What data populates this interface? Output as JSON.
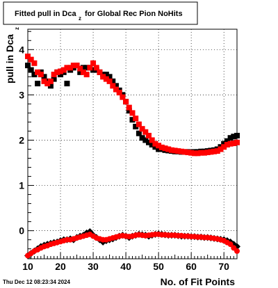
{
  "chart_data": {
    "type": "scatter",
    "title": {
      "main": "Fitted pull in Dca",
      "subscript": "z",
      "rest": "for Global Rec Pion NoHits"
    },
    "xlabel": "No. of Fit Points",
    "ylabel": {
      "main": "pull in Dca",
      "subscript": "z"
    },
    "xlim": [
      10,
      74
    ],
    "ylim": [
      -0.62,
      4.45
    ],
    "xticks": [
      10,
      20,
      30,
      40,
      50,
      60,
      70
    ],
    "yticks": [
      0,
      1,
      2,
      3,
      4
    ],
    "grid": true,
    "date_stamp": "Thu Dec 12 08:23:34 2024",
    "colors": {
      "black_series": "#000000",
      "red_series": "#ff0000"
    },
    "series": [
      {
        "marker": "square",
        "color": "#000000",
        "x": [
          10,
          11,
          12,
          13,
          14,
          15,
          16,
          17,
          18,
          19,
          20,
          21,
          22,
          23,
          24,
          25,
          26,
          27,
          28,
          29,
          30,
          31,
          32,
          33,
          34,
          35,
          36,
          37,
          38,
          39,
          40,
          41,
          42,
          43,
          44,
          45,
          46,
          47,
          48,
          49,
          50,
          51,
          52,
          53,
          54,
          55,
          56,
          57,
          58,
          59,
          60,
          61,
          62,
          63,
          64,
          65,
          66,
          67,
          68,
          69,
          70,
          71,
          72,
          73,
          74
        ],
        "y": [
          3.65,
          3.55,
          3.45,
          3.25,
          3.5,
          3.4,
          3.3,
          3.2,
          3.35,
          3.5,
          3.45,
          3.5,
          3.25,
          3.55,
          3.6,
          3.65,
          3.5,
          3.6,
          3.6,
          3.6,
          3.55,
          3.55,
          3.5,
          3.45,
          3.45,
          3.4,
          3.3,
          3.2,
          3.1,
          3.0,
          2.85,
          2.65,
          2.45,
          2.3,
          2.15,
          2.05,
          2.0,
          1.95,
          1.9,
          1.85,
          1.8,
          1.8,
          1.78,
          1.77,
          1.76,
          1.75,
          1.75,
          1.74,
          1.74,
          1.74,
          1.73,
          1.74,
          1.74,
          1.75,
          1.75,
          1.76,
          1.77,
          1.78,
          1.8,
          1.85,
          1.92,
          1.98,
          2.05,
          2.08,
          2.1
        ]
      },
      {
        "marker": "diamond",
        "color": "#000000",
        "x": [
          10,
          11,
          12,
          13,
          14,
          15,
          16,
          17,
          18,
          19,
          20,
          21,
          22,
          23,
          24,
          25,
          26,
          27,
          28,
          29,
          30,
          31,
          32,
          33,
          34,
          35,
          36,
          37,
          38,
          39,
          40,
          41,
          42,
          43,
          44,
          45,
          46,
          47,
          48,
          49,
          50,
          51,
          52,
          53,
          54,
          55,
          56,
          57,
          58,
          59,
          60,
          61,
          62,
          63,
          64,
          65,
          66,
          67,
          68,
          69,
          70,
          71,
          72,
          73,
          74
        ],
        "y": [
          -0.55,
          -0.5,
          -0.45,
          -0.4,
          -0.35,
          -0.32,
          -0.3,
          -0.28,
          -0.26,
          -0.25,
          -0.22,
          -0.2,
          -0.2,
          -0.18,
          -0.2,
          -0.15,
          -0.12,
          -0.1,
          -0.05,
          -0.02,
          -0.1,
          -0.15,
          -0.2,
          -0.25,
          -0.22,
          -0.2,
          -0.18,
          -0.15,
          -0.12,
          -0.1,
          -0.12,
          -0.15,
          -0.12,
          -0.1,
          -0.08,
          -0.09,
          -0.1,
          -0.12,
          -0.1,
          -0.08,
          -0.07,
          -0.08,
          -0.09,
          -0.1,
          -0.1,
          -0.1,
          -0.11,
          -0.12,
          -0.12,
          -0.12,
          -0.13,
          -0.13,
          -0.14,
          -0.14,
          -0.15,
          -0.15,
          -0.16,
          -0.17,
          -0.18,
          -0.19,
          -0.2,
          -0.22,
          -0.25,
          -0.3,
          -0.35
        ]
      },
      {
        "marker": "square",
        "color": "#ff0000",
        "x": [
          10,
          11,
          12,
          13,
          14,
          15,
          16,
          17,
          18,
          19,
          20,
          21,
          22,
          23,
          24,
          25,
          26,
          27,
          28,
          29,
          30,
          31,
          32,
          33,
          34,
          35,
          36,
          37,
          38,
          39,
          40,
          41,
          42,
          43,
          44,
          45,
          46,
          47,
          48,
          49,
          50,
          51,
          52,
          53,
          54,
          55,
          56,
          57,
          58,
          59,
          60,
          61,
          62,
          63,
          64,
          65,
          66,
          67,
          68,
          69,
          70,
          71,
          72,
          73,
          74
        ],
        "y": [
          3.85,
          3.78,
          3.7,
          3.5,
          3.45,
          3.3,
          3.25,
          3.3,
          3.45,
          3.5,
          3.52,
          3.55,
          3.6,
          3.6,
          3.65,
          3.65,
          3.58,
          3.5,
          3.45,
          3.6,
          3.7,
          3.6,
          3.5,
          3.4,
          3.35,
          3.3,
          3.2,
          3.12,
          3.05,
          2.95,
          2.85,
          2.72,
          2.6,
          2.48,
          2.35,
          2.25,
          2.18,
          2.1,
          2.0,
          1.92,
          1.88,
          1.84,
          1.82,
          1.8,
          1.78,
          1.77,
          1.76,
          1.75,
          1.74,
          1.73,
          1.72,
          1.71,
          1.71,
          1.72,
          1.72,
          1.73,
          1.74,
          1.75,
          1.76,
          1.8,
          1.85,
          1.9,
          1.92,
          1.93,
          1.95
        ]
      },
      {
        "marker": "circle",
        "color": "#ff0000",
        "x": [
          10,
          11,
          12,
          13,
          14,
          15,
          16,
          17,
          18,
          19,
          20,
          21,
          22,
          23,
          24,
          25,
          26,
          27,
          28,
          29,
          30,
          31,
          32,
          33,
          34,
          35,
          36,
          37,
          38,
          39,
          40,
          41,
          42,
          43,
          44,
          45,
          46,
          47,
          48,
          49,
          50,
          51,
          52,
          53,
          54,
          55,
          56,
          57,
          58,
          59,
          60,
          61,
          62,
          63,
          64,
          65,
          66,
          67,
          68,
          69,
          70,
          71,
          72,
          73,
          74
        ],
        "y": [
          -0.55,
          -0.5,
          -0.45,
          -0.42,
          -0.38,
          -0.35,
          -0.33,
          -0.3,
          -0.28,
          -0.26,
          -0.24,
          -0.22,
          -0.2,
          -0.2,
          -0.18,
          -0.16,
          -0.14,
          -0.12,
          -0.1,
          -0.08,
          -0.12,
          -0.16,
          -0.18,
          -0.2,
          -0.2,
          -0.18,
          -0.16,
          -0.14,
          -0.12,
          -0.11,
          -0.12,
          -0.13,
          -0.12,
          -0.1,
          -0.09,
          -0.1,
          -0.11,
          -0.1,
          -0.09,
          -0.08,
          -0.08,
          -0.09,
          -0.09,
          -0.1,
          -0.1,
          -0.1,
          -0.11,
          -0.11,
          -0.12,
          -0.12,
          -0.13,
          -0.13,
          -0.14,
          -0.14,
          -0.15,
          -0.15,
          -0.16,
          -0.17,
          -0.18,
          -0.2,
          -0.22,
          -0.26,
          -0.3,
          -0.38,
          -0.45
        ]
      }
    ]
  }
}
